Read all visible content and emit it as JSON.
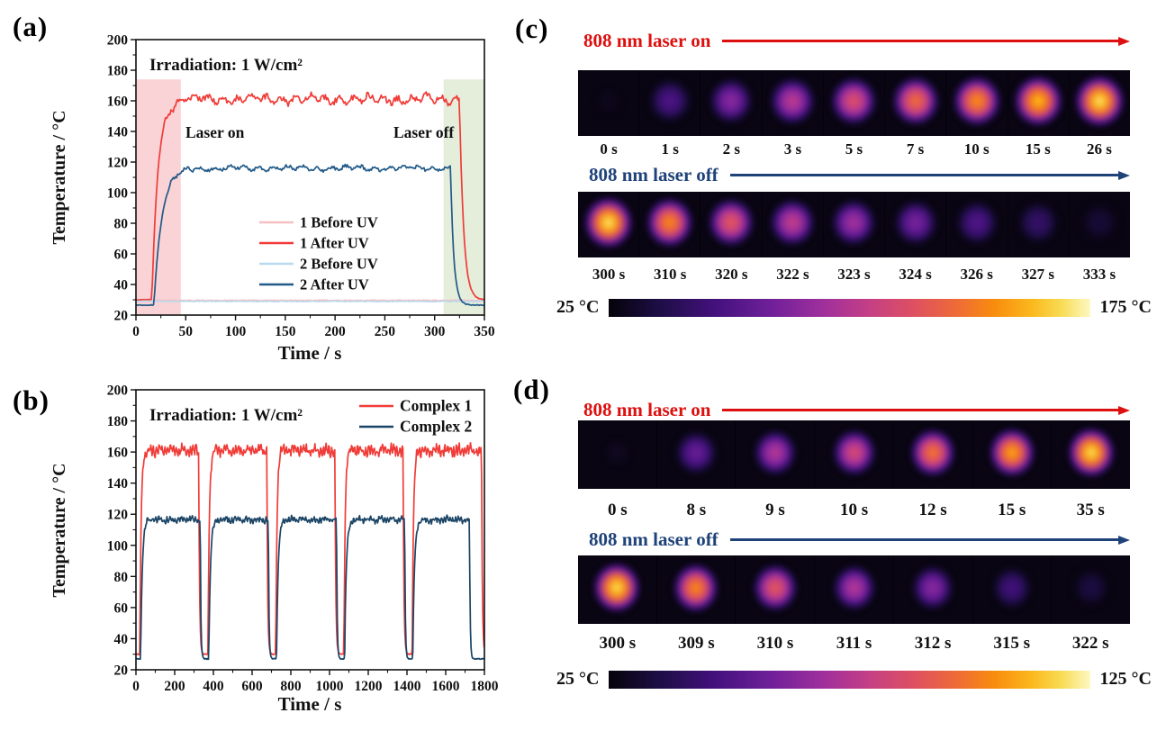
{
  "panel_labels": {
    "a": "(a)",
    "b": "(b)",
    "c": "(c)",
    "d": "(d)"
  },
  "colors": {
    "laser_on_red": "#dd0f0f",
    "laser_off_blue": "#1f4379",
    "complex1_red": "#f03c38",
    "complex2_blue": "#1b4566"
  },
  "chart_data": [
    {
      "panel": "a",
      "type": "line",
      "title_annotation": "Irradiation: 1 W/cm²",
      "xlabel": "Time / s",
      "ylabel": "Temperature / °C",
      "xlim": [
        0,
        350
      ],
      "ylim": [
        20,
        200
      ],
      "xticks": [
        0,
        50,
        100,
        150,
        200,
        250,
        300,
        350
      ],
      "yticks": [
        20,
        40,
        60,
        80,
        100,
        120,
        140,
        160,
        180,
        200
      ],
      "xminor": 25,
      "yminor": 10,
      "grid": false,
      "legend_position": "center-right",
      "regions": [
        {
          "label": "Laser on",
          "label_color": "#b0205f",
          "x0": 0,
          "x1": 45,
          "y0": 20,
          "y1": 174,
          "fill": "#f9d3d5"
        },
        {
          "label": "Laser off",
          "label_color": "#1d8a56",
          "x0": 309,
          "x1": 350,
          "y0": 20,
          "y1": 174,
          "fill": "#e4eedb"
        }
      ],
      "series": [
        {
          "name": "1 Before UV",
          "color": "#f6bfc1",
          "baseline": 29.6,
          "noise": 0.35,
          "cycles": []
        },
        {
          "name": "1 After UV",
          "color": "#f03c38",
          "baseline": 30,
          "plateau": 161,
          "noise": 2.3,
          "rise_tau": 6,
          "fall_tau": 4,
          "cycles": [
            [
              16,
              325
            ]
          ]
        },
        {
          "name": "2 Before UV",
          "color": "#b9daee",
          "baseline": 29,
          "noise": 0.35,
          "cycles": []
        },
        {
          "name": "2 After UV",
          "color": "#215a88",
          "baseline": 26.5,
          "plateau": 116,
          "noise": 1.3,
          "rise_tau": 8,
          "fall_tau": 3.2,
          "cycles": [
            [
              18,
              316
            ]
          ]
        }
      ]
    },
    {
      "panel": "b",
      "type": "line",
      "title_annotation": "Irradiation: 1 W/cm²",
      "xlabel": "Time / s",
      "ylabel": "Temperature / °C",
      "xlim": [
        0,
        1800
      ],
      "ylim": [
        20,
        200
      ],
      "xticks": [
        0,
        200,
        400,
        600,
        800,
        1000,
        1200,
        1400,
        1600,
        1800
      ],
      "yticks": [
        20,
        40,
        60,
        80,
        100,
        120,
        140,
        160,
        180,
        200
      ],
      "xminor": 100,
      "yminor": 10,
      "grid": false,
      "legend_position": "top-right",
      "regions": [],
      "series": [
        {
          "name": "Complex 1",
          "color": "#f03c38",
          "baseline": 30,
          "plateau": 161,
          "noise": 2.5,
          "rise_tau": 6.5,
          "fall_tau": 4,
          "cycles": [
            [
              20,
              324
            ],
            [
              372,
              676
            ],
            [
              722,
              1028
            ],
            [
              1074,
              1380
            ],
            [
              1427,
              1785
            ]
          ]
        },
        {
          "name": "Complex 2",
          "color": "#1b4566",
          "baseline": 27,
          "plateau": 116.5,
          "noise": 1.4,
          "rise_tau": 8.5,
          "fall_tau": 3.2,
          "cycles": [
            [
              24,
              332
            ],
            [
              376,
              684
            ],
            [
              726,
              1036
            ],
            [
              1078,
              1388
            ],
            [
              1430,
              1723
            ]
          ]
        }
      ]
    },
    {
      "panel": "c",
      "type": "thermal-strip",
      "laser_on_label": "808 nm laser on",
      "laser_off_label": "808 nm laser off",
      "on_frames": [
        {
          "time": "0 s",
          "intensity": 0.02
        },
        {
          "time": "1 s",
          "intensity": 0.25
        },
        {
          "time": "2 s",
          "intensity": 0.4
        },
        {
          "time": "3 s",
          "intensity": 0.52
        },
        {
          "time": "5 s",
          "intensity": 0.63
        },
        {
          "time": "7 s",
          "intensity": 0.73
        },
        {
          "time": "10 s",
          "intensity": 0.81
        },
        {
          "time": "15 s",
          "intensity": 0.89
        },
        {
          "time": "26 s",
          "intensity": 0.96
        }
      ],
      "off_frames": [
        {
          "time": "300 s",
          "intensity": 0.96
        },
        {
          "time": "310 s",
          "intensity": 0.8
        },
        {
          "time": "320 s",
          "intensity": 0.66
        },
        {
          "time": "322 s",
          "intensity": 0.54
        },
        {
          "time": "323 s",
          "intensity": 0.46
        },
        {
          "time": "324 s",
          "intensity": 0.36
        },
        {
          "time": "326 s",
          "intensity": 0.26
        },
        {
          "time": "327 s",
          "intensity": 0.18
        },
        {
          "time": "333 s",
          "intensity": 0.08
        }
      ],
      "colorbar": {
        "min_label": "25 °C",
        "max_label": "175 °C"
      }
    },
    {
      "panel": "d",
      "type": "thermal-strip",
      "laser_on_label": "808 nm laser on",
      "laser_off_label": "808 nm laser off",
      "on_frames": [
        {
          "time": "0 s",
          "intensity": 0.03
        },
        {
          "time": "8 s",
          "intensity": 0.32
        },
        {
          "time": "9 s",
          "intensity": 0.5
        },
        {
          "time": "10 s",
          "intensity": 0.6
        },
        {
          "time": "12 s",
          "intensity": 0.75
        },
        {
          "time": "15 s",
          "intensity": 0.85
        },
        {
          "time": "35 s",
          "intensity": 0.95
        }
      ],
      "off_frames": [
        {
          "time": "300 s",
          "intensity": 0.95
        },
        {
          "time": "309 s",
          "intensity": 0.8
        },
        {
          "time": "310 s",
          "intensity": 0.66
        },
        {
          "time": "311 s",
          "intensity": 0.5
        },
        {
          "time": "312 s",
          "intensity": 0.4
        },
        {
          "time": "315 s",
          "intensity": 0.22
        },
        {
          "time": "322 s",
          "intensity": 0.1
        }
      ],
      "colorbar": {
        "min_label": "25 °C",
        "max_label": "125 °C"
      }
    }
  ]
}
